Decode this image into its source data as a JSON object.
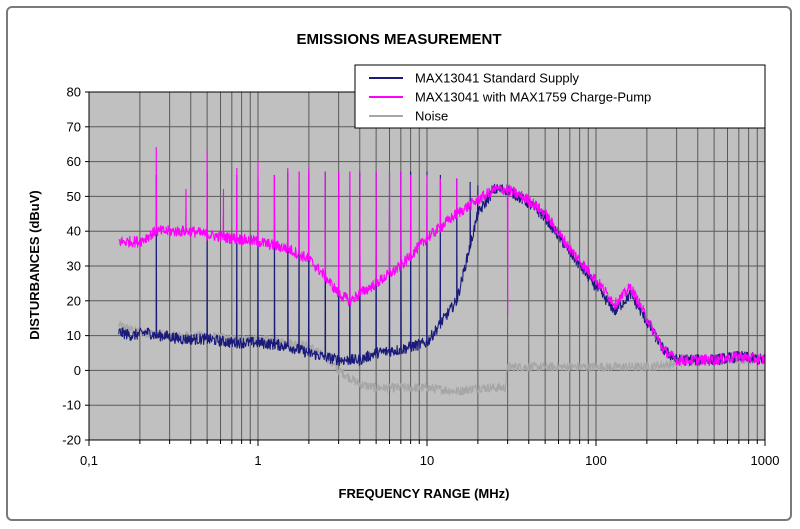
{
  "chart_data": {
    "type": "line",
    "title": "EMISSIONS MEASUREMENT",
    "xlabel": "FREQUENCY RANGE (MHz)",
    "ylabel": "DISTURBANCES (dBuV)",
    "x_scale": "log",
    "xlim": [
      0.1,
      1000
    ],
    "ylim": [
      -20,
      80
    ],
    "x_ticks": [
      "0,1",
      "1",
      "10",
      "100",
      "1000"
    ],
    "y_ticks": [
      "80",
      "70",
      "60",
      "50",
      "40",
      "30",
      "20",
      "10",
      "0",
      "-10",
      "-20"
    ],
    "grid": true,
    "legend_position": "top-right",
    "series": [
      {
        "name": "MAX13041 Standard Supply",
        "color": "#1a1a7a",
        "x": [
          0.15,
          0.18,
          0.22,
          0.25,
          0.28,
          0.35,
          0.5,
          0.7,
          1.0,
          1.5,
          2.0,
          3.0,
          4.0,
          5.0,
          7.0,
          10,
          15,
          20,
          25,
          30,
          40,
          50,
          70,
          100,
          130,
          160,
          200,
          250,
          300,
          400,
          500,
          700,
          1000
        ],
        "y": [
          11,
          10,
          11,
          10,
          10,
          9,
          9,
          8,
          8,
          7,
          5,
          3,
          3,
          5,
          6,
          8,
          20,
          45,
          52,
          52,
          48,
          44,
          34,
          24,
          17,
          22,
          14,
          6,
          3,
          3,
          3,
          4,
          3
        ],
        "peaks": [
          {
            "x": 0.25,
            "y": 56
          },
          {
            "x": 0.5,
            "y": 57
          },
          {
            "x": 0.75,
            "y": 56
          },
          {
            "x": 1.0,
            "y": 55
          },
          {
            "x": 1.25,
            "y": 56
          },
          {
            "x": 1.5,
            "y": 57
          },
          {
            "x": 1.75,
            "y": 57
          },
          {
            "x": 2.0,
            "y": 57
          },
          {
            "x": 2.5,
            "y": 57
          },
          {
            "x": 3.0,
            "y": 57
          },
          {
            "x": 3.5,
            "y": 57
          },
          {
            "x": 4.0,
            "y": 57
          },
          {
            "x": 5.0,
            "y": 57
          },
          {
            "x": 6.0,
            "y": 57
          },
          {
            "x": 7.0,
            "y": 57
          },
          {
            "x": 8.0,
            "y": 57
          },
          {
            "x": 10,
            "y": 57
          },
          {
            "x": 12,
            "y": 56
          },
          {
            "x": 15,
            "y": 55
          },
          {
            "x": 18,
            "y": 54
          },
          {
            "x": 20,
            "y": 53
          }
        ]
      },
      {
        "name": "MAX13041 with MAX1759 Charge-Pump",
        "color": "#ff00ff",
        "x": [
          0.15,
          0.2,
          0.25,
          0.3,
          0.4,
          0.5,
          0.7,
          1.0,
          1.5,
          2.0,
          2.5,
          3.0,
          3.5,
          4.0,
          5.0,
          7.0,
          10,
          15,
          20,
          25,
          30,
          40,
          50,
          70,
          100,
          130,
          160,
          200,
          250,
          300,
          400,
          500,
          700,
          1000
        ],
        "y": [
          37,
          37,
          40,
          40,
          40,
          39,
          38,
          37,
          35,
          32,
          27,
          22,
          20,
          22,
          25,
          30,
          38,
          45,
          49,
          52,
          52,
          49,
          45,
          35,
          26,
          19,
          24,
          15,
          6,
          3,
          3,
          3,
          4,
          3
        ],
        "peaks": [
          {
            "x": 0.25,
            "y": 64
          },
          {
            "x": 0.375,
            "y": 52
          },
          {
            "x": 0.5,
            "y": 63
          },
          {
            "x": 0.625,
            "y": 52
          },
          {
            "x": 0.75,
            "y": 58
          },
          {
            "x": 1.0,
            "y": 60
          },
          {
            "x": 1.25,
            "y": 56
          },
          {
            "x": 1.5,
            "y": 58
          },
          {
            "x": 1.75,
            "y": 57
          },
          {
            "x": 2.0,
            "y": 58
          },
          {
            "x": 2.5,
            "y": 57
          },
          {
            "x": 3.0,
            "y": 57
          },
          {
            "x": 3.5,
            "y": 57
          },
          {
            "x": 4.0,
            "y": 57
          },
          {
            "x": 5.0,
            "y": 57
          },
          {
            "x": 6.0,
            "y": 57
          },
          {
            "x": 7.0,
            "y": 57
          },
          {
            "x": 8.0,
            "y": 56
          },
          {
            "x": 10,
            "y": 56
          },
          {
            "x": 12,
            "y": 55
          },
          {
            "x": 15,
            "y": 55
          },
          {
            "x": 30,
            "y": 16
          }
        ]
      },
      {
        "name": "Noise",
        "color": "#a6a6a6",
        "x": [
          0.15,
          0.2,
          0.3,
          0.5,
          0.7,
          1.0,
          1.5,
          2.0,
          2.5,
          3.0,
          4.0,
          5.0,
          7.0,
          10,
          15,
          20,
          29,
          30,
          50,
          100,
          200,
          300,
          500,
          700,
          1000
        ],
        "y": [
          13,
          11,
          10,
          10,
          9,
          9,
          8,
          7,
          4,
          0,
          -4,
          -5,
          -5,
          -5,
          -6,
          -5,
          -5,
          1,
          1,
          1,
          1,
          2,
          3,
          3,
          3
        ]
      }
    ]
  }
}
